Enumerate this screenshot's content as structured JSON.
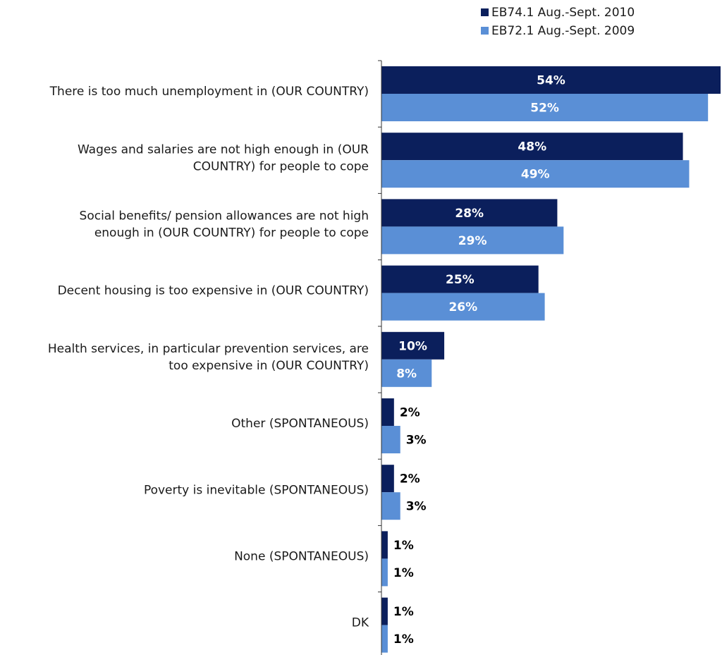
{
  "chart_data": {
    "type": "bar",
    "orientation": "horizontal",
    "categories": [
      [
        "There is too much unemployment in (OUR COUNTRY)"
      ],
      [
        "Wages and salaries are not high enough in (OUR",
        "COUNTRY) for people to cope"
      ],
      [
        "Social benefits/ pension allowances are not high",
        "enough in (OUR COUNTRY) for people to cope"
      ],
      [
        "Decent housing is too expensive in (OUR COUNTRY)"
      ],
      [
        "Health services, in particular prevention services, are",
        "too expensive in (OUR COUNTRY)"
      ],
      [
        "Other (SPONTANEOUS)"
      ],
      [
        "Poverty is inevitable (SPONTANEOUS)"
      ],
      [
        "None (SPONTANEOUS)"
      ],
      [
        "DK"
      ]
    ],
    "series": [
      {
        "name": "EB74.1 Aug.-Sept. 2010",
        "color": "#0b1f5c",
        "values": [
          54,
          48,
          28,
          25,
          10,
          2,
          2,
          1,
          1
        ]
      },
      {
        "name": "EB72.1 Aug.-Sept. 2009",
        "color": "#5a8fd6",
        "values": [
          52,
          49,
          29,
          26,
          8,
          3,
          3,
          1,
          1
        ]
      }
    ],
    "value_suffix": "%",
    "xlim": [
      0,
      54
    ],
    "legend_position": "top-right",
    "grid": false
  }
}
